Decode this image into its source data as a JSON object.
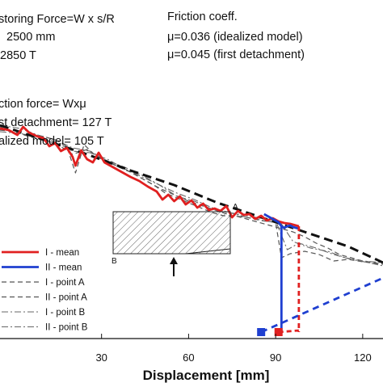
{
  "chart_data": {
    "type": "line",
    "xlabel": "Displacement [mm]",
    "ylabel": "",
    "xlim": [
      -5,
      127
    ],
    "ylim": [
      0,
      480
    ],
    "x_ticks": [
      30,
      60,
      90,
      120
    ],
    "grid": false,
    "legend_position": "bottom-left",
    "annotations": {
      "restoring_force": "storing Force=W x s/R",
      "radius": "2500 mm",
      "weight": "2850 T",
      "friction_coeff_title": "Friction coeff.",
      "mu_idealized": "μ=0.036 (idealized model)",
      "mu_detachment": "μ=0.045 (first detachment)",
      "friction_force": "ction force= Wxμ",
      "first_detachment": "st detachment= 127 T",
      "idealized_model": "alized model= 105 T"
    },
    "inset": {
      "label_a": "A",
      "label_b": "B"
    },
    "series": [
      {
        "name": "I - mean",
        "color": "#e02020",
        "style": "solid",
        "points": [
          [
            -5,
            260
          ],
          [
            -2,
            258
          ],
          [
            1,
            252
          ],
          [
            3,
            262
          ],
          [
            5,
            255
          ],
          [
            8,
            250
          ],
          [
            10,
            248
          ],
          [
            12,
            238
          ],
          [
            14,
            242
          ],
          [
            16,
            232
          ],
          [
            18,
            236
          ],
          [
            20,
            225
          ],
          [
            21,
            214
          ],
          [
            23,
            233
          ],
          [
            25,
            222
          ],
          [
            27,
            218
          ],
          [
            29,
            230
          ],
          [
            31,
            218
          ],
          [
            34,
            212
          ],
          [
            37,
            206
          ],
          [
            40,
            200
          ],
          [
            43,
            195
          ],
          [
            46,
            188
          ],
          [
            49,
            182
          ],
          [
            51,
            172
          ],
          [
            53,
            178
          ],
          [
            55,
            170
          ],
          [
            57,
            176
          ],
          [
            59,
            166
          ],
          [
            61,
            171
          ],
          [
            63,
            162
          ],
          [
            65,
            167
          ],
          [
            67,
            159
          ],
          [
            69,
            161
          ],
          [
            71,
            158
          ],
          [
            73,
            164
          ],
          [
            75,
            150
          ],
          [
            77,
            158
          ],
          [
            79,
            153
          ],
          [
            81,
            154
          ],
          [
            83,
            148
          ],
          [
            85,
            152
          ],
          [
            87,
            146
          ],
          [
            89,
            149
          ],
          [
            91,
            145
          ],
          [
            93,
            143
          ],
          [
            95,
            142
          ],
          [
            97,
            140
          ],
          [
            98,
            139
          ]
        ]
      },
      {
        "name": "II - mean",
        "color": "#1f3fd0",
        "style": "solid",
        "points": [
          [
            86,
            154
          ],
          [
            88,
            150
          ],
          [
            90,
            146
          ],
          [
            91,
            144
          ],
          [
            92,
            139
          ],
          [
            93,
            137
          ],
          [
            94,
            139
          ],
          [
            95,
            140
          ],
          [
            96,
            138
          ],
          [
            97,
            137
          ],
          [
            98,
            136
          ]
        ]
      },
      {
        "name": "I - point A",
        "color": "#555555",
        "style": "dashed",
        "points": [
          [
            -5,
            262
          ],
          [
            0,
            254
          ],
          [
            5,
            252
          ],
          [
            10,
            250
          ],
          [
            14,
            246
          ],
          [
            18,
            238
          ],
          [
            21,
            205
          ],
          [
            24,
            240
          ],
          [
            28,
            226
          ],
          [
            32,
            220
          ],
          [
            36,
            212
          ],
          [
            40,
            206
          ],
          [
            44,
            198
          ],
          [
            48,
            190
          ],
          [
            52,
            180
          ],
          [
            56,
            174
          ],
          [
            60,
            168
          ],
          [
            64,
            162
          ],
          [
            68,
            156
          ],
          [
            72,
            152
          ],
          [
            76,
            152
          ],
          [
            80,
            148
          ],
          [
            84,
            144
          ],
          [
            88,
            140
          ],
          [
            92,
            136
          ],
          [
            96,
            132
          ],
          [
            100,
            126
          ],
          [
            104,
            118
          ],
          [
            108,
            112
          ],
          [
            112,
            104
          ],
          [
            116,
            100
          ],
          [
            120,
            96
          ],
          [
            124,
            94
          ],
          [
            127,
            92
          ]
        ]
      },
      {
        "name": "II - point A",
        "color": "#555555",
        "style": "dashed",
        "points": [
          [
            -5,
            258
          ],
          [
            0,
            256
          ],
          [
            5,
            250
          ],
          [
            10,
            246
          ],
          [
            15,
            240
          ],
          [
            20,
            228
          ],
          [
            25,
            234
          ],
          [
            30,
            222
          ],
          [
            35,
            214
          ],
          [
            40,
            206
          ],
          [
            45,
            196
          ],
          [
            50,
            186
          ],
          [
            55,
            178
          ],
          [
            60,
            170
          ],
          [
            65,
            164
          ],
          [
            70,
            158
          ],
          [
            75,
            152
          ],
          [
            80,
            150
          ],
          [
            85,
            146
          ],
          [
            90,
            144
          ],
          [
            92,
            100
          ],
          [
            95,
            105
          ],
          [
            100,
            108
          ],
          [
            105,
            104
          ],
          [
            110,
            96
          ],
          [
            115,
            98
          ],
          [
            120,
            95
          ],
          [
            127,
            92
          ]
        ]
      },
      {
        "name": "I - point B",
        "color": "#666666",
        "style": "dashdot",
        "points": [
          [
            -5,
            256
          ],
          [
            2,
            254
          ],
          [
            8,
            248
          ],
          [
            14,
            244
          ],
          [
            20,
            232
          ],
          [
            26,
            230
          ],
          [
            32,
            222
          ],
          [
            38,
            210
          ],
          [
            44,
            200
          ],
          [
            50,
            190
          ],
          [
            56,
            176
          ],
          [
            62,
            170
          ],
          [
            68,
            160
          ],
          [
            74,
            156
          ],
          [
            80,
            152
          ],
          [
            86,
            148
          ],
          [
            90,
            146
          ],
          [
            94,
            110
          ],
          [
            98,
            118
          ],
          [
            104,
            112
          ],
          [
            110,
            104
          ],
          [
            116,
            98
          ],
          [
            122,
            94
          ],
          [
            127,
            90
          ]
        ]
      },
      {
        "name": "II - point B",
        "color": "#666666",
        "style": "dashdot",
        "points": [
          [
            -5,
            264
          ],
          [
            2,
            260
          ],
          [
            8,
            252
          ],
          [
            14,
            246
          ],
          [
            20,
            236
          ],
          [
            26,
            232
          ],
          [
            32,
            220
          ],
          [
            38,
            212
          ],
          [
            44,
            202
          ],
          [
            50,
            190
          ],
          [
            56,
            180
          ],
          [
            62,
            172
          ],
          [
            68,
            162
          ],
          [
            74,
            156
          ],
          [
            80,
            150
          ],
          [
            86,
            146
          ],
          [
            92,
            142
          ],
          [
            96,
            120
          ],
          [
            102,
            112
          ],
          [
            108,
            108
          ],
          [
            114,
            100
          ],
          [
            120,
            96
          ],
          [
            127,
            94
          ]
        ]
      },
      {
        "name": "idealized model",
        "color": "#111111",
        "style": "bold-dashed",
        "points": [
          [
            -5,
            264
          ],
          [
            10,
            246
          ],
          [
            25,
            228
          ],
          [
            40,
            208
          ],
          [
            55,
            190
          ],
          [
            70,
            168
          ],
          [
            85,
            150
          ],
          [
            100,
            132
          ],
          [
            115,
            114
          ],
          [
            127,
            94
          ]
        ]
      }
    ],
    "unloading": [
      {
        "series": "I - mean",
        "x": 98,
        "y_from": 139,
        "y_to": 8,
        "color": "#e02020",
        "style": "dashed"
      },
      {
        "series": "II - mean",
        "x": 92,
        "y_from": 139,
        "y_to": 8,
        "color": "#1f3fd0",
        "style": "solid"
      }
    ],
    "markers": [
      {
        "x": 85,
        "y": 8,
        "color": "#1f3fd0"
      },
      {
        "x": 91,
        "y": 8,
        "color": "#e02020"
      }
    ]
  }
}
